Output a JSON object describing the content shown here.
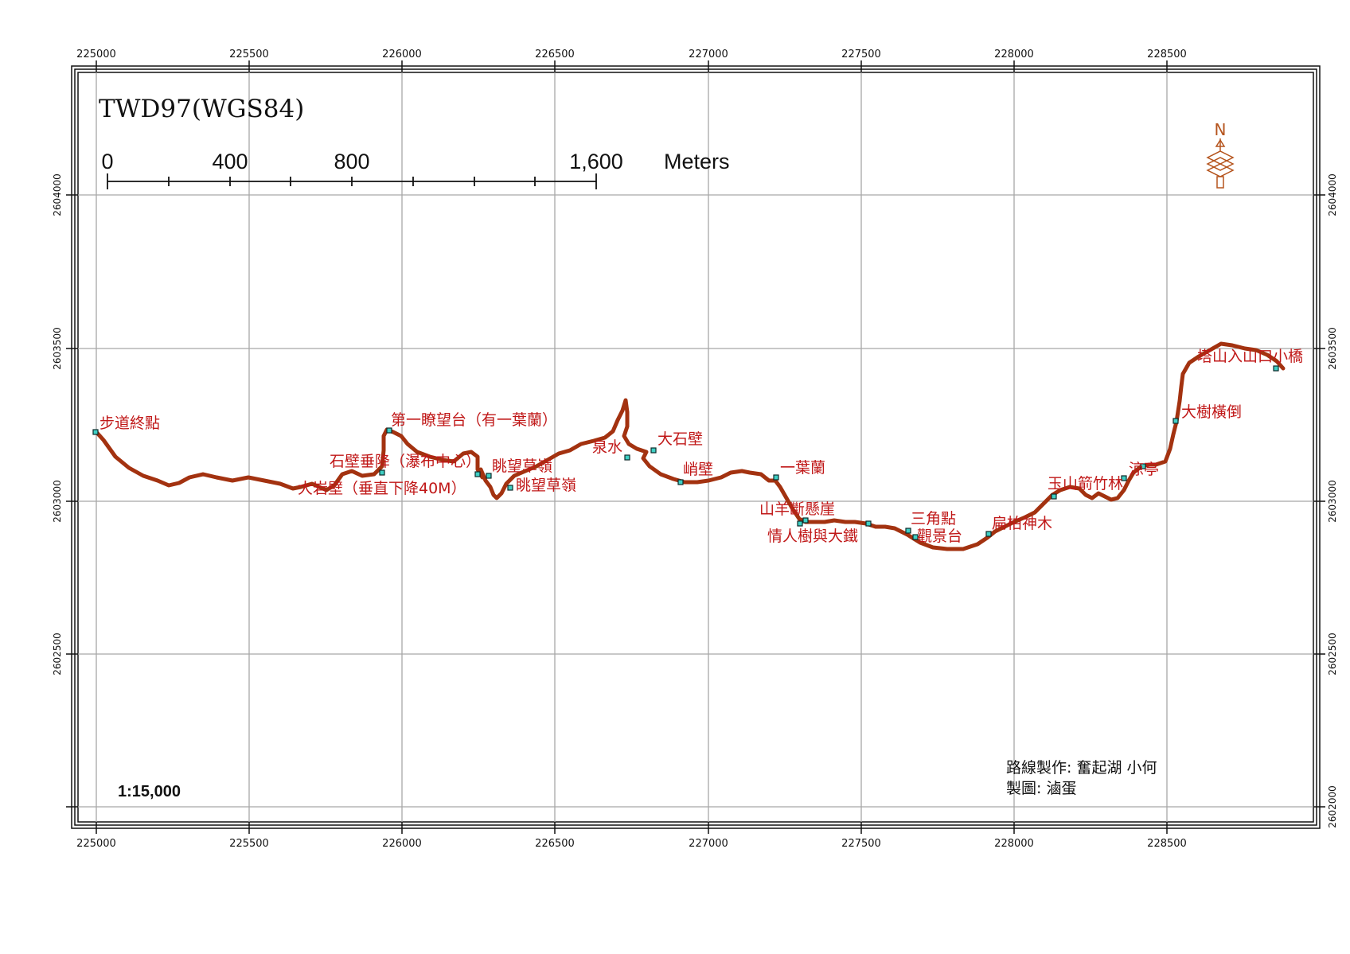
{
  "map": {
    "crs_label": "TWD97(WGS84)",
    "scale_bar": {
      "labels": [
        "0",
        "400",
        "800",
        "1,600"
      ],
      "unit": "Meters"
    },
    "scale_ratio": "1:15,000",
    "north_symbol": "N",
    "credits": [
      "路線製作: 奮起湖 小何",
      "製圖: 滷蛋"
    ],
    "x_ticks": [
      "225000",
      "225500",
      "226000",
      "226500",
      "227000",
      "227500",
      "228000",
      "228500"
    ],
    "y_ticks": [
      "2604000",
      "2603500",
      "2603000",
      "2602500",
      "2602000"
    ],
    "route_color": "#a33210",
    "waypoint_color": "#3fcfc4",
    "label_color": "#c01818",
    "waypoints": [
      {
        "label": "步道終點"
      },
      {
        "label": "第一瞭望台（有一葉蘭）"
      },
      {
        "label": "石壁垂降（瀑布中心）"
      },
      {
        "label": "大岩壁（垂直下降40M）"
      },
      {
        "label": "眺望草嶺"
      },
      {
        "label": "眺望草嶺"
      },
      {
        "label": "泉水"
      },
      {
        "label": "大石壁"
      },
      {
        "label": "峭壁"
      },
      {
        "label": "一葉蘭"
      },
      {
        "label": "山羊斷懸崖"
      },
      {
        "label": "情人樹與大鐵"
      },
      {
        "label": "三角點"
      },
      {
        "label": "觀景台"
      },
      {
        "label": "扁柏神木"
      },
      {
        "label": "玉山箭竹林"
      },
      {
        "label": "涼亭"
      },
      {
        "label": "大樹橫倒"
      },
      {
        "label": "塔山入山口小橋"
      }
    ]
  }
}
